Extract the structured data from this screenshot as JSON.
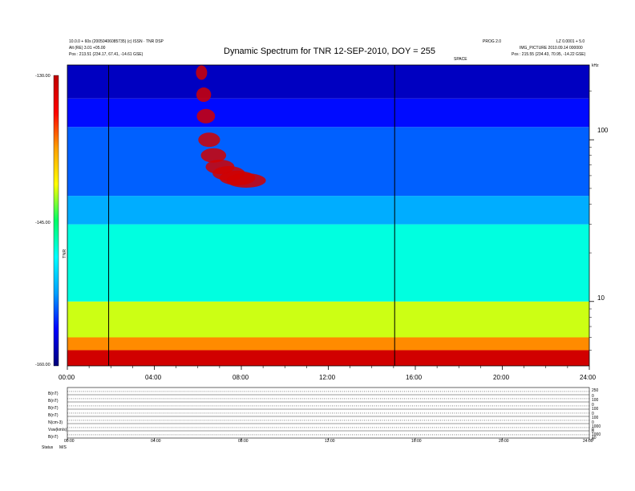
{
  "header": {
    "left_line1": "10.0.0 + 60s (20050406085735) (c) ISSN · TNR DSP",
    "left_line2": "Alt (RE) 3.01 +05.00",
    "left_line3": "Pos : 213.51 (234.17, 67.41, -14.61 GSE)",
    "right_line1": "PROG 2.0",
    "right_line2": "LZ 0.0001 + 5.0",
    "right_line3": "IMG_PICTURE 2010.09.14 000000",
    "right_line4": "Pos : 215.55 (234.43, 70.95, -14.22 GSE)",
    "right_tag": "SPACE",
    "corner_label": "kHz"
  },
  "chart_data": [
    {
      "type": "heatmap",
      "title": "Dynamic Spectrum for TNR 12-SEP-2010, DOY = 255",
      "x_ticks": [
        "00:00",
        "04:00",
        "08:00",
        "12:00",
        "16:00",
        "20:00",
        "24:00"
      ],
      "x_range_hours": [
        0,
        24
      ],
      "y_scale": "log",
      "y_ticks": [
        "100",
        "10"
      ],
      "y_tick_values": [
        100,
        10
      ],
      "y_range_khz": [
        4,
        290
      ],
      "colorbar": {
        "label": "TNR",
        "ticks": [
          "-130.00",
          "-145.00",
          "-160.00"
        ],
        "range": [
          -160,
          -130
        ],
        "colors": [
          "#00007a",
          "#0000ff",
          "#00a0ff",
          "#00ffff",
          "#00ff66",
          "#ffff00",
          "#ffa000",
          "#ff0000",
          "#c00000"
        ]
      },
      "vertical_markers_hours": [
        1.9,
        15.05
      ],
      "bands_khz": [
        {
          "from": 4,
          "to": 5,
          "level": -131
        },
        {
          "from": 5,
          "to": 6,
          "level": -137
        },
        {
          "from": 6,
          "to": 10,
          "level": -142
        },
        {
          "from": 10,
          "to": 30,
          "level": -148
        },
        {
          "from": 30,
          "to": 45,
          "level": -152
        },
        {
          "from": 45,
          "to": 120,
          "level": -154
        },
        {
          "from": 120,
          "to": 180,
          "level": -156
        },
        {
          "from": 180,
          "to": 290,
          "level": -158
        }
      ],
      "burst_hours": [
        [
          5.95,
          260
        ],
        [
          6.05,
          190
        ],
        [
          6.15,
          140
        ],
        [
          6.3,
          100
        ],
        [
          6.5,
          80
        ],
        [
          6.8,
          68
        ],
        [
          7.2,
          62
        ],
        [
          7.6,
          58
        ],
        [
          8.0,
          56
        ]
      ]
    },
    {
      "type": "line",
      "title": "",
      "panels": [
        {
          "label": "B(nT)",
          "right_ticks": [
            "250",
            "0"
          ]
        },
        {
          "label": "B(nT)",
          "right_ticks": [
            "100",
            "0"
          ]
        },
        {
          "label": "B(nT)",
          "right_ticks": [
            "100",
            "0"
          ]
        },
        {
          "label": "B(nT)",
          "right_ticks": [
            "100",
            "0"
          ]
        },
        {
          "label": "N(cm-3)",
          "right_ticks": [
            "1000",
            "0"
          ]
        },
        {
          "label": "Vsw(km/s)",
          "right_ticks": [
            "1000",
            "0"
          ]
        },
        {
          "label": "B(nT)",
          "right_ticks": [
            "10",
            "0"
          ]
        }
      ],
      "x_ticks": [
        "00:00",
        "04:00",
        "08:00",
        "12:00",
        "16:00",
        "20:00",
        "24:00"
      ],
      "footer_label": "Status",
      "footer_value": "M/S"
    }
  ]
}
